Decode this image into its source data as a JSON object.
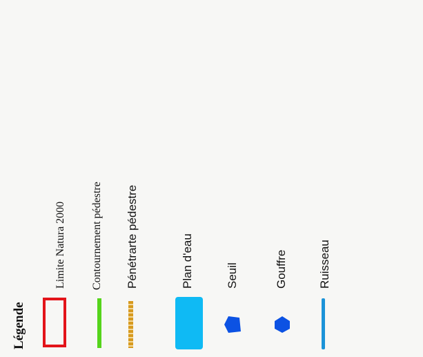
{
  "legend": {
    "title": "Légende",
    "items": [
      {
        "label": "Limite Natura 2000",
        "symbol": "red-outline-rectangle",
        "color": "#e3141a"
      },
      {
        "label": "Contournement pédestre",
        "symbol": "green-line",
        "color": "#55d41b"
      },
      {
        "label": "Pénétrarte pédestre",
        "symbol": "orange-dotted-line",
        "color": "#d79a1e"
      },
      {
        "label": "Plan d'eau",
        "symbol": "blue-filled-rectangle",
        "color": "#0fbaf4"
      },
      {
        "label": "Seuil",
        "symbol": "blue-pentagon",
        "color": "#0c52e3"
      },
      {
        "label": "Gouffre",
        "symbol": "blue-hexagon",
        "color": "#0c52e3"
      },
      {
        "label": "Ruisseau",
        "symbol": "blue-line",
        "color": "#1b93d8"
      }
    ]
  }
}
